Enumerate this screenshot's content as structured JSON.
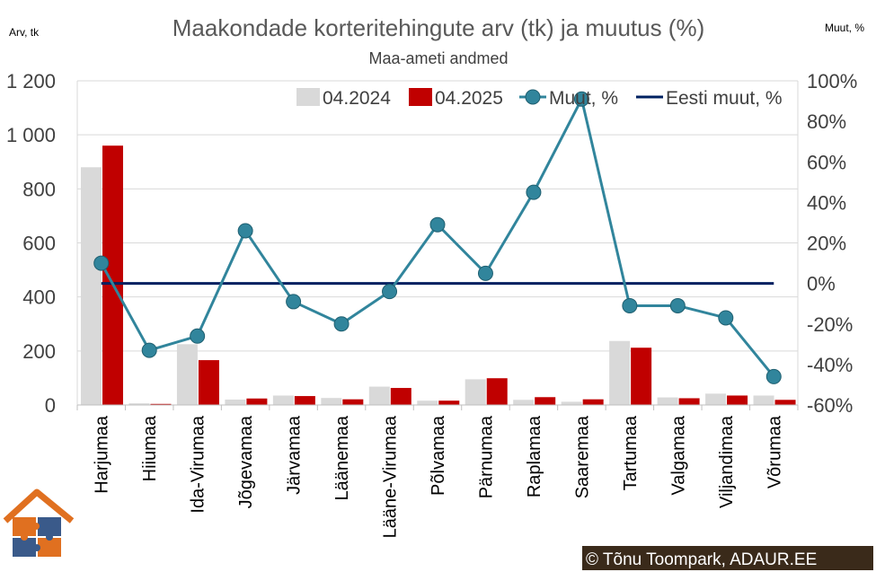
{
  "chart_data": {
    "type": "bar",
    "title": "Maakondade korteritehingute arv (tk) ja muutus (%)",
    "subtitle": "Maa-ameti andmed",
    "ylabel": "Arv, tk",
    "y2label": "Muut, %",
    "categories": [
      "Harjumaa",
      "Hiiumaa",
      "Ida-Virumaa",
      "Jõgevamaa",
      "Järvamaa",
      "Läänemaa",
      "Lääne-Virumaa",
      "Põlvamaa",
      "Pärnumaa",
      "Raplamaa",
      "Saaremaa",
      "Tartumaa",
      "Valgamaa",
      "Viljandimaa",
      "Võrumaa"
    ],
    "ylim": [
      0,
      1200
    ],
    "y_ticks": [
      0,
      200,
      400,
      600,
      800,
      1000,
      1200
    ],
    "y_tick_labels": [
      "0",
      "200",
      "400",
      "600",
      "800",
      "1 000",
      "1 200"
    ],
    "y2lim": [
      -60,
      100
    ],
    "y2_ticks": [
      -60,
      -40,
      -20,
      0,
      20,
      40,
      60,
      80,
      100
    ],
    "y2_tick_labels": [
      "-60%",
      "-40%",
      "-20%",
      "0%",
      "20%",
      "40%",
      "60%",
      "80%",
      "100%"
    ],
    "series": [
      {
        "name": "04.2024",
        "type": "bar",
        "axis": "left",
        "color": "#d9d9d9",
        "values": [
          880,
          6,
          225,
          20,
          35,
          26,
          68,
          16,
          95,
          19,
          12,
          237,
          28,
          42,
          35
        ]
      },
      {
        "name": "04.2025",
        "type": "bar",
        "axis": "left",
        "color": "#c00000",
        "values": [
          960,
          4,
          166,
          24,
          33,
          21,
          63,
          16,
          99,
          29,
          21,
          212,
          25,
          35,
          19
        ]
      },
      {
        "name": "Muut, %",
        "type": "line-markers",
        "axis": "right",
        "color": "#31859c",
        "values": [
          10,
          -33,
          -26,
          26,
          -9,
          -20,
          -4,
          29,
          5,
          45,
          91,
          -11,
          -11,
          -17,
          -46
        ]
      },
      {
        "name": "Eesti muut, %",
        "type": "line",
        "axis": "right",
        "color": "#002060",
        "values": [
          0,
          0,
          0,
          0,
          0,
          0,
          0,
          0,
          0,
          0,
          0,
          0,
          0,
          0,
          0
        ]
      }
    ],
    "grid": true,
    "legend_position": "top"
  },
  "copyright": "© Tõnu Toompark, ADAUR.EE",
  "logo_icon": "house-puzzle-logo"
}
